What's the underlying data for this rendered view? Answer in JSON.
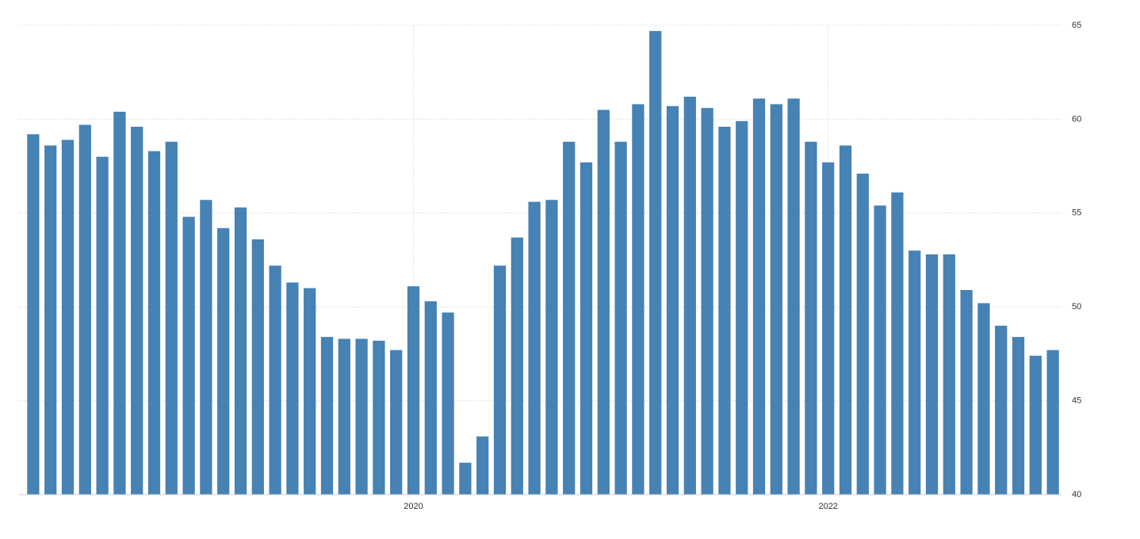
{
  "chart_data": {
    "type": "bar",
    "categories": [
      null,
      null,
      null,
      null,
      null,
      null,
      null,
      null,
      null,
      null,
      null,
      null,
      null,
      null,
      null,
      null,
      null,
      null,
      null,
      null,
      null,
      null,
      "2020",
      null,
      null,
      null,
      null,
      null,
      null,
      null,
      null,
      null,
      null,
      null,
      null,
      null,
      null,
      null,
      null,
      null,
      null,
      null,
      null,
      null,
      null,
      null,
      "2022",
      null,
      null,
      null,
      null,
      null,
      null,
      null,
      null,
      null,
      null,
      null,
      null,
      null
    ],
    "values": [
      59.2,
      58.6,
      58.9,
      59.7,
      58.0,
      60.4,
      59.6,
      58.3,
      58.8,
      54.8,
      55.7,
      54.2,
      55.3,
      53.6,
      52.2,
      51.3,
      51.0,
      48.4,
      48.3,
      48.3,
      48.2,
      47.7,
      51.1,
      50.3,
      49.7,
      41.7,
      43.1,
      52.2,
      53.7,
      55.6,
      55.7,
      58.8,
      57.7,
      60.5,
      58.8,
      60.8,
      64.7,
      60.7,
      61.2,
      60.6,
      59.6,
      59.9,
      61.1,
      60.8,
      61.1,
      58.8,
      57.7,
      58.6,
      57.1,
      55.4,
      56.1,
      53.0,
      52.8,
      52.8,
      50.9,
      50.2,
      49.0,
      48.4,
      47.4,
      47.7
    ],
    "color": "#4682b4",
    "ylim": [
      40,
      65
    ],
    "yticks": [
      40,
      45,
      50,
      55,
      60,
      65
    ],
    "grid": true
  }
}
